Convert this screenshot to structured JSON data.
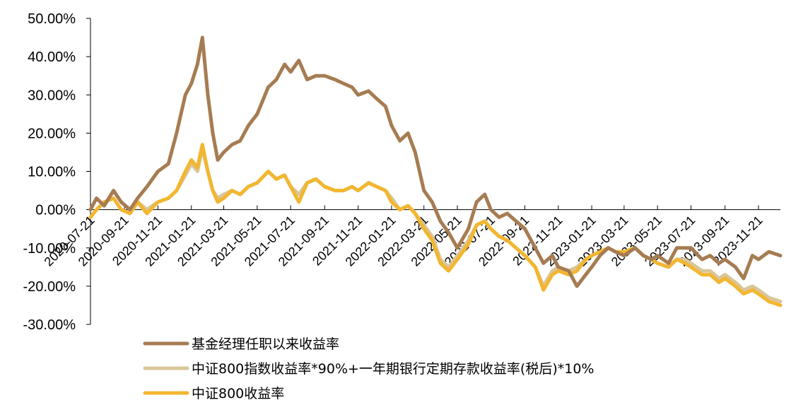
{
  "chart_data": {
    "type": "line",
    "ylim": [
      -0.3,
      0.5
    ],
    "y_ticks": [
      {
        "value": 0.5,
        "label": "50.00%"
      },
      {
        "value": 0.4,
        "label": "40.00%"
      },
      {
        "value": 0.3,
        "label": "30.00%"
      },
      {
        "value": 0.2,
        "label": "20.00%"
      },
      {
        "value": 0.1,
        "label": "10.00%"
      },
      {
        "value": 0.0,
        "label": "0.00%"
      },
      {
        "value": -0.1,
        "label": "-10.00%"
      },
      {
        "value": -0.2,
        "label": "-20.00%"
      },
      {
        "value": -0.3,
        "label": "-30.00%"
      }
    ],
    "x_range": [
      "2020-07-21",
      "2023-12-31"
    ],
    "x_ticks": [
      "2020-07-21",
      "2020-09-21",
      "2020-11-21",
      "2021-01-21",
      "2021-03-21",
      "2021-05-21",
      "2021-07-21",
      "2021-09-21",
      "2021-11-21",
      "2022-01-21",
      "2022-03-21",
      "2022-05-21",
      "2022-07-21",
      "2022-09-21",
      "2022-11-21",
      "2023-01-21",
      "2023-03-21",
      "2023-05-21",
      "2023-07-21",
      "2023-09-21",
      "2023-11-21"
    ],
    "legend_position": "bottom",
    "series": [
      {
        "name": "基金经理任职以来收益率",
        "color": "#A67C52",
        "points": [
          [
            "2020-07-21",
            0.0
          ],
          [
            "2020-08-01",
            0.03
          ],
          [
            "2020-08-15",
            0.01
          ],
          [
            "2020-09-01",
            0.05
          ],
          [
            "2020-09-15",
            0.02
          ],
          [
            "2020-10-01",
            0.0
          ],
          [
            "2020-10-15",
            0.03
          ],
          [
            "2020-11-01",
            0.06
          ],
          [
            "2020-11-21",
            0.1
          ],
          [
            "2020-12-10",
            0.12
          ],
          [
            "2020-12-25",
            0.2
          ],
          [
            "2021-01-10",
            0.3
          ],
          [
            "2021-01-21",
            0.33
          ],
          [
            "2021-02-01",
            0.38
          ],
          [
            "2021-02-10",
            0.45
          ],
          [
            "2021-02-20",
            0.3
          ],
          [
            "2021-03-01",
            0.2
          ],
          [
            "2021-03-10",
            0.13
          ],
          [
            "2021-03-21",
            0.15
          ],
          [
            "2021-04-05",
            0.17
          ],
          [
            "2021-04-20",
            0.18
          ],
          [
            "2021-05-05",
            0.22
          ],
          [
            "2021-05-21",
            0.25
          ],
          [
            "2021-06-10",
            0.32
          ],
          [
            "2021-06-25",
            0.34
          ],
          [
            "2021-07-10",
            0.38
          ],
          [
            "2021-07-21",
            0.36
          ],
          [
            "2021-08-05",
            0.39
          ],
          [
            "2021-08-20",
            0.34
          ],
          [
            "2021-09-05",
            0.35
          ],
          [
            "2021-09-21",
            0.35
          ],
          [
            "2021-10-10",
            0.34
          ],
          [
            "2021-10-25",
            0.33
          ],
          [
            "2021-11-10",
            0.32
          ],
          [
            "2021-11-21",
            0.3
          ],
          [
            "2021-12-10",
            0.31
          ],
          [
            "2021-12-25",
            0.29
          ],
          [
            "2022-01-10",
            0.27
          ],
          [
            "2022-01-21",
            0.22
          ],
          [
            "2022-02-05",
            0.18
          ],
          [
            "2022-02-20",
            0.2
          ],
          [
            "2022-03-05",
            0.15
          ],
          [
            "2022-03-21",
            0.05
          ],
          [
            "2022-04-05",
            0.02
          ],
          [
            "2022-04-20",
            -0.03
          ],
          [
            "2022-05-05",
            -0.06
          ],
          [
            "2022-05-21",
            -0.1
          ],
          [
            "2022-06-10",
            -0.05
          ],
          [
            "2022-06-25",
            0.02
          ],
          [
            "2022-07-10",
            0.04
          ],
          [
            "2022-07-21",
            0.0
          ],
          [
            "2022-08-05",
            -0.02
          ],
          [
            "2022-08-20",
            -0.01
          ],
          [
            "2022-09-05",
            -0.03
          ],
          [
            "2022-09-21",
            -0.05
          ],
          [
            "2022-10-10",
            -0.1
          ],
          [
            "2022-10-25",
            -0.14
          ],
          [
            "2022-11-10",
            -0.12
          ],
          [
            "2022-11-21",
            -0.15
          ],
          [
            "2022-12-10",
            -0.16
          ],
          [
            "2022-12-25",
            -0.2
          ],
          [
            "2023-01-10",
            -0.17
          ],
          [
            "2023-01-21",
            -0.15
          ],
          [
            "2023-02-05",
            -0.12
          ],
          [
            "2023-02-20",
            -0.1
          ],
          [
            "2023-03-05",
            -0.11
          ],
          [
            "2023-03-21",
            -0.12
          ],
          [
            "2023-04-10",
            -0.1
          ],
          [
            "2023-04-25",
            -0.12
          ],
          [
            "2023-05-10",
            -0.13
          ],
          [
            "2023-05-21",
            -0.12
          ],
          [
            "2023-06-10",
            -0.14
          ],
          [
            "2023-06-25",
            -0.1
          ],
          [
            "2023-07-10",
            -0.1
          ],
          [
            "2023-07-21",
            -0.1
          ],
          [
            "2023-08-10",
            -0.13
          ],
          [
            "2023-08-25",
            -0.12
          ],
          [
            "2023-09-10",
            -0.14
          ],
          [
            "2023-09-21",
            -0.13
          ],
          [
            "2023-10-10",
            -0.15
          ],
          [
            "2023-10-25",
            -0.18
          ],
          [
            "2023-11-10",
            -0.12
          ],
          [
            "2023-11-21",
            -0.13
          ],
          [
            "2023-12-10",
            -0.11
          ],
          [
            "2023-12-31",
            -0.12
          ]
        ]
      },
      {
        "name": "中证800指数收益率*90%+一年期银行定期存款收益率(税后)*10%",
        "color": "#D8C69A",
        "points": [
          [
            "2020-07-21",
            -0.02
          ],
          [
            "2020-08-01",
            0.0
          ],
          [
            "2020-08-15",
            0.02
          ],
          [
            "2020-09-01",
            0.03
          ],
          [
            "2020-09-15",
            0.0
          ],
          [
            "2020-10-01",
            -0.01
          ],
          [
            "2020-10-15",
            0.02
          ],
          [
            "2020-11-01",
            0.0
          ],
          [
            "2020-11-21",
            0.02
          ],
          [
            "2020-12-10",
            0.03
          ],
          [
            "2020-12-25",
            0.05
          ],
          [
            "2021-01-10",
            0.09
          ],
          [
            "2021-01-21",
            0.12
          ],
          [
            "2021-02-01",
            0.1
          ],
          [
            "2021-02-10",
            0.16
          ],
          [
            "2021-02-20",
            0.1
          ],
          [
            "2021-03-01",
            0.05
          ],
          [
            "2021-03-10",
            0.03
          ],
          [
            "2021-03-21",
            0.04
          ],
          [
            "2021-04-05",
            0.05
          ],
          [
            "2021-04-20",
            0.04
          ],
          [
            "2021-05-05",
            0.06
          ],
          [
            "2021-05-21",
            0.07
          ],
          [
            "2021-06-10",
            0.1
          ],
          [
            "2021-06-25",
            0.08
          ],
          [
            "2021-07-10",
            0.09
          ],
          [
            "2021-07-21",
            0.06
          ],
          [
            "2021-08-05",
            0.04
          ],
          [
            "2021-08-20",
            0.07
          ],
          [
            "2021-09-05",
            0.08
          ],
          [
            "2021-09-21",
            0.06
          ],
          [
            "2021-10-10",
            0.05
          ],
          [
            "2021-10-25",
            0.05
          ],
          [
            "2021-11-10",
            0.06
          ],
          [
            "2021-11-21",
            0.05
          ],
          [
            "2021-12-10",
            0.07
          ],
          [
            "2021-12-25",
            0.06
          ],
          [
            "2022-01-10",
            0.05
          ],
          [
            "2022-01-21",
            0.03
          ],
          [
            "2022-02-05",
            0.0
          ],
          [
            "2022-02-20",
            0.01
          ],
          [
            "2022-03-05",
            -0.01
          ],
          [
            "2022-03-21",
            -0.04
          ],
          [
            "2022-04-05",
            -0.07
          ],
          [
            "2022-04-20",
            -0.13
          ],
          [
            "2022-05-05",
            -0.15
          ],
          [
            "2022-05-21",
            -0.12
          ],
          [
            "2022-06-10",
            -0.08
          ],
          [
            "2022-06-25",
            -0.04
          ],
          [
            "2022-07-10",
            -0.03
          ],
          [
            "2022-07-21",
            -0.05
          ],
          [
            "2022-08-05",
            -0.07
          ],
          [
            "2022-08-20",
            -0.08
          ],
          [
            "2022-09-05",
            -0.1
          ],
          [
            "2022-09-21",
            -0.12
          ],
          [
            "2022-10-10",
            -0.15
          ],
          [
            "2022-10-25",
            -0.2
          ],
          [
            "2022-11-10",
            -0.16
          ],
          [
            "2022-11-21",
            -0.15
          ],
          [
            "2022-12-10",
            -0.16
          ],
          [
            "2022-12-25",
            -0.15
          ],
          [
            "2023-01-10",
            -0.13
          ],
          [
            "2023-01-21",
            -0.12
          ],
          [
            "2023-02-05",
            -0.11
          ],
          [
            "2023-02-20",
            -0.1
          ],
          [
            "2023-03-05",
            -0.11
          ],
          [
            "2023-03-21",
            -0.11
          ],
          [
            "2023-04-10",
            -0.1
          ],
          [
            "2023-04-25",
            -0.12
          ],
          [
            "2023-05-10",
            -0.13
          ],
          [
            "2023-05-21",
            -0.14
          ],
          [
            "2023-06-10",
            -0.15
          ],
          [
            "2023-06-25",
            -0.13
          ],
          [
            "2023-07-10",
            -0.13
          ],
          [
            "2023-07-21",
            -0.14
          ],
          [
            "2023-08-10",
            -0.16
          ],
          [
            "2023-08-25",
            -0.16
          ],
          [
            "2023-09-10",
            -0.18
          ],
          [
            "2023-09-21",
            -0.17
          ],
          [
            "2023-10-10",
            -0.19
          ],
          [
            "2023-10-25",
            -0.21
          ],
          [
            "2023-11-10",
            -0.2
          ],
          [
            "2023-11-21",
            -0.21
          ],
          [
            "2023-12-10",
            -0.23
          ],
          [
            "2023-12-31",
            -0.24
          ]
        ]
      },
      {
        "name": "中证800收益率",
        "color": "#F2B630",
        "points": [
          [
            "2020-07-21",
            -0.02
          ],
          [
            "2020-08-01",
            0.0
          ],
          [
            "2020-08-15",
            0.02
          ],
          [
            "2020-09-01",
            0.03
          ],
          [
            "2020-09-15",
            0.0
          ],
          [
            "2020-10-01",
            -0.01
          ],
          [
            "2020-10-15",
            0.02
          ],
          [
            "2020-11-01",
            -0.01
          ],
          [
            "2020-11-21",
            0.02
          ],
          [
            "2020-12-10",
            0.03
          ],
          [
            "2020-12-25",
            0.05
          ],
          [
            "2021-01-10",
            0.1
          ],
          [
            "2021-01-21",
            0.13
          ],
          [
            "2021-02-01",
            0.11
          ],
          [
            "2021-02-10",
            0.17
          ],
          [
            "2021-02-20",
            0.1
          ],
          [
            "2021-03-01",
            0.05
          ],
          [
            "2021-03-10",
            0.02
          ],
          [
            "2021-03-21",
            0.03
          ],
          [
            "2021-04-05",
            0.05
          ],
          [
            "2021-04-20",
            0.04
          ],
          [
            "2021-05-05",
            0.06
          ],
          [
            "2021-05-21",
            0.07
          ],
          [
            "2021-06-10",
            0.1
          ],
          [
            "2021-06-25",
            0.08
          ],
          [
            "2021-07-10",
            0.09
          ],
          [
            "2021-07-21",
            0.06
          ],
          [
            "2021-08-05",
            0.02
          ],
          [
            "2021-08-20",
            0.07
          ],
          [
            "2021-09-05",
            0.08
          ],
          [
            "2021-09-21",
            0.06
          ],
          [
            "2021-10-10",
            0.05
          ],
          [
            "2021-10-25",
            0.05
          ],
          [
            "2021-11-10",
            0.06
          ],
          [
            "2021-11-21",
            0.05
          ],
          [
            "2021-12-10",
            0.07
          ],
          [
            "2021-12-25",
            0.06
          ],
          [
            "2022-01-10",
            0.05
          ],
          [
            "2022-01-21",
            0.02
          ],
          [
            "2022-02-05",
            0.0
          ],
          [
            "2022-02-20",
            0.01
          ],
          [
            "2022-03-05",
            -0.01
          ],
          [
            "2022-03-21",
            -0.05
          ],
          [
            "2022-04-05",
            -0.08
          ],
          [
            "2022-04-20",
            -0.14
          ],
          [
            "2022-05-05",
            -0.16
          ],
          [
            "2022-05-21",
            -0.13
          ],
          [
            "2022-06-10",
            -0.09
          ],
          [
            "2022-06-25",
            -0.04
          ],
          [
            "2022-07-10",
            -0.03
          ],
          [
            "2022-07-21",
            -0.05
          ],
          [
            "2022-08-05",
            -0.07
          ],
          [
            "2022-08-20",
            -0.08
          ],
          [
            "2022-09-05",
            -0.1
          ],
          [
            "2022-09-21",
            -0.12
          ],
          [
            "2022-10-10",
            -0.15
          ],
          [
            "2022-10-25",
            -0.21
          ],
          [
            "2022-11-10",
            -0.17
          ],
          [
            "2022-11-21",
            -0.16
          ],
          [
            "2022-12-10",
            -0.17
          ],
          [
            "2022-12-25",
            -0.16
          ],
          [
            "2023-01-10",
            -0.13
          ],
          [
            "2023-01-21",
            -0.12
          ],
          [
            "2023-02-05",
            -0.11
          ],
          [
            "2023-02-20",
            -0.1
          ],
          [
            "2023-03-05",
            -0.11
          ],
          [
            "2023-03-21",
            -0.11
          ],
          [
            "2023-04-10",
            -0.1
          ],
          [
            "2023-04-25",
            -0.12
          ],
          [
            "2023-05-10",
            -0.13
          ],
          [
            "2023-05-21",
            -0.14
          ],
          [
            "2023-06-10",
            -0.15
          ],
          [
            "2023-06-25",
            -0.13
          ],
          [
            "2023-07-10",
            -0.14
          ],
          [
            "2023-07-21",
            -0.15
          ],
          [
            "2023-08-10",
            -0.17
          ],
          [
            "2023-08-25",
            -0.17
          ],
          [
            "2023-09-10",
            -0.19
          ],
          [
            "2023-09-21",
            -0.18
          ],
          [
            "2023-10-10",
            -0.2
          ],
          [
            "2023-10-25",
            -0.22
          ],
          [
            "2023-11-10",
            -0.21
          ],
          [
            "2023-11-21",
            -0.22
          ],
          [
            "2023-12-10",
            -0.24
          ],
          [
            "2023-12-31",
            -0.25
          ]
        ]
      }
    ]
  }
}
